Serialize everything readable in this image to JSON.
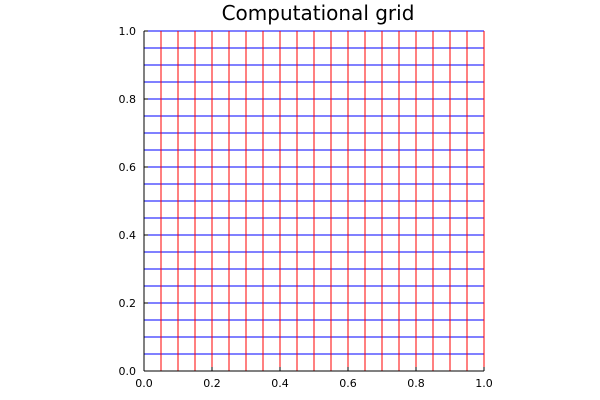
{
  "chart_data": {
    "type": "line",
    "title": "Computational grid",
    "xlabel": "",
    "ylabel": "",
    "xlim": [
      0.0,
      1.0
    ],
    "ylim": [
      0.0,
      1.0
    ],
    "x_ticks": [
      0.0,
      0.2,
      0.4,
      0.6,
      0.8,
      1.0
    ],
    "y_ticks": [
      0.0,
      0.2,
      0.4,
      0.6,
      0.8,
      1.0
    ],
    "x_tick_labels": [
      "0.0",
      "0.2",
      "0.4",
      "0.6",
      "0.8",
      "1.0"
    ],
    "y_tick_labels": [
      "0.0",
      "0.2",
      "0.4",
      "0.6",
      "0.8",
      "1.0"
    ],
    "grid": false,
    "legend": "none",
    "aspect": "equal",
    "series": [
      {
        "orientation": "vertical",
        "color": "#ff0000",
        "x": [
          0.0,
          0.05,
          0.1,
          0.15,
          0.2,
          0.25,
          0.3,
          0.35,
          0.4,
          0.45,
          0.5,
          0.55,
          0.6,
          0.65,
          0.7,
          0.75,
          0.8,
          0.85,
          0.9,
          0.95,
          1.0
        ],
        "y_range": [
          0.0,
          1.0
        ]
      },
      {
        "orientation": "horizontal",
        "color": "#0000ff",
        "y": [
          0.0,
          0.05,
          0.1,
          0.15,
          0.2,
          0.25,
          0.3,
          0.35,
          0.4,
          0.45,
          0.5,
          0.55,
          0.6,
          0.65,
          0.7,
          0.75,
          0.8,
          0.85,
          0.9,
          0.95,
          1.0
        ],
        "x_range": [
          0.0,
          1.0
        ]
      }
    ]
  }
}
